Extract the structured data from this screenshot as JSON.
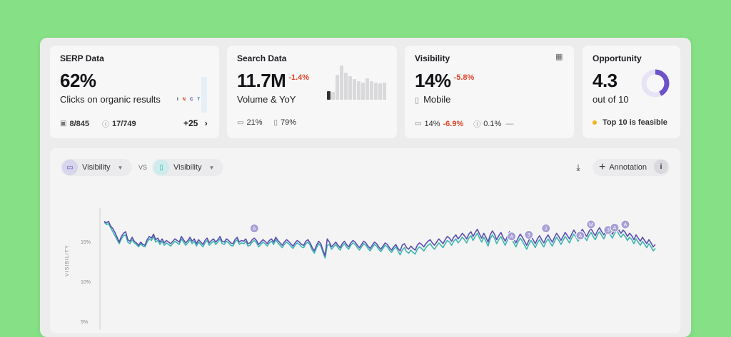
{
  "cards": {
    "serp": {
      "title": "SERP Data",
      "value": "62%",
      "subtitle": "Clicks on organic results",
      "features_label": "8/845",
      "unknown_label": "17/749",
      "more_label": "+25",
      "intent_tags": [
        "I",
        "N",
        "C",
        "T"
      ]
    },
    "search": {
      "title": "Search Data",
      "value": "11.7M",
      "delta": "-1.4%",
      "subtitle": "Volume & YoY",
      "desktop_share": "21%",
      "mobile_share": "79%",
      "trend_bars": [
        0.25,
        0.22,
        0.72,
        1.0,
        0.8,
        0.68,
        0.6,
        0.55,
        0.5,
        0.62,
        0.55,
        0.5,
        0.48,
        0.5
      ],
      "highlight_bar_index": 0
    },
    "visibility": {
      "title": "Visibility",
      "value": "14%",
      "delta": "-5.8%",
      "subtitle": "Mobile",
      "desktop_value": "14%",
      "desktop_delta": "-6.9%",
      "other_value": "0.1%",
      "other_delta": "—"
    },
    "opportunity": {
      "title": "Opportunity",
      "value": "4.3",
      "subtitle": "out of 10",
      "status": "Top 10 is feasible",
      "status_color": "#f1b51c",
      "score_fraction": 0.43,
      "ring_color": "#6e52c8"
    }
  },
  "chart_controls": {
    "left_series_label": "Visibility",
    "right_series_label": "Visibility",
    "vs_label": "VS",
    "annotation_label": "Annotation"
  },
  "chart_data": {
    "type": "line",
    "ylabel": "VISIBILITY",
    "yticks": [
      "15%",
      "10%",
      "5%"
    ],
    "ytick_values": [
      15,
      10,
      5
    ],
    "ylim": [
      2,
      20
    ],
    "x_count": 260,
    "grid": false,
    "series": [
      {
        "color": "#5a4fb0",
        "values": [
          17.8,
          17.6,
          17.8,
          17.2,
          16.9,
          16.4,
          15.8,
          15.2,
          15.9,
          16.3,
          16.5,
          15.5,
          15.3,
          15.8,
          15.3,
          15.1,
          14.8,
          15.2,
          14.9,
          14.8,
          15.5,
          15.9,
          15.7,
          16.2,
          15.5,
          15.7,
          15.2,
          15.6,
          15.1,
          15.4,
          15.2,
          15.0,
          15.3,
          15.6,
          15.4,
          15.2,
          15.9,
          15.5,
          15.1,
          15.4,
          15.8,
          15.3,
          15.6,
          15.0,
          15.5,
          15.2,
          14.9,
          15.4,
          15.7,
          15.1,
          15.4,
          15.6,
          15.2,
          15.5,
          15.9,
          15.3,
          15.2,
          15.6,
          15.4,
          15.1,
          15.0,
          15.5,
          15.8,
          15.2,
          15.4,
          15.3,
          15.6,
          15.0,
          15.1,
          15.5,
          15.7,
          15.4,
          14.9,
          15.2,
          15.5,
          15.3,
          15.0,
          15.4,
          15.6,
          15.2,
          15.8,
          15.4,
          15.1,
          14.8,
          15.2,
          15.5,
          15.3,
          15.0,
          14.7,
          15.1,
          15.4,
          15.2,
          14.9,
          14.8,
          15.3,
          15.5,
          15.1,
          14.5,
          14.1,
          14.8,
          15.3,
          15.0,
          14.2,
          13.5,
          15.6,
          15.2,
          14.6,
          14.9,
          15.2,
          14.8,
          14.5,
          15.0,
          15.3,
          14.9,
          14.6,
          15.1,
          15.4,
          15.2,
          14.8,
          14.5,
          14.9,
          15.3,
          15.1,
          14.7,
          14.4,
          14.8,
          15.2,
          15.0,
          14.6,
          14.3,
          14.7,
          15.1,
          14.9,
          14.5,
          14.2,
          14.6,
          14.9,
          14.4,
          14.1,
          14.8,
          15.0,
          14.5,
          14.3,
          14.7,
          14.4,
          14.2,
          14.8,
          15.1,
          14.9,
          14.6,
          15.0,
          15.3,
          15.5,
          15.1,
          14.8,
          15.2,
          15.6,
          15.3,
          15.0,
          15.5,
          15.9,
          15.7,
          15.3,
          15.8,
          16.1,
          15.6,
          15.9,
          16.3,
          16.0,
          15.6,
          16.2,
          16.5,
          15.9,
          16.4,
          16.8,
          16.2,
          15.7,
          16.3,
          15.8,
          15.2,
          16.1,
          16.6,
          16.2,
          15.5,
          16.0,
          16.4,
          15.8,
          15.3,
          15.9,
          16.5,
          16.1,
          15.6,
          15.1,
          15.7,
          16.2,
          15.8,
          15.3,
          14.8,
          15.4,
          15.9,
          15.5,
          15.0,
          15.6,
          16.0,
          15.5,
          15.1,
          15.7,
          16.1,
          15.6,
          15.2,
          15.8,
          16.3,
          15.9,
          15.4,
          15.9,
          16.4,
          16.0,
          15.6,
          16.2,
          16.7,
          16.3,
          15.8,
          16.4,
          16.8,
          16.3,
          15.9,
          16.5,
          16.9,
          16.4,
          16.0,
          16.6,
          17.0,
          16.5,
          16.1,
          16.7,
          17.1,
          16.6,
          16.2,
          16.8,
          17.2,
          16.7,
          16.3,
          16.7,
          16.4,
          15.9,
          16.3,
          16.0,
          15.5,
          16.1,
          15.7,
          15.3,
          15.8,
          15.4,
          15.0,
          15.5,
          15.1,
          14.6,
          14.9
        ]
      },
      {
        "color": "#3db5ae",
        "values": [
          17.7,
          17.4,
          17.5,
          17.0,
          16.5,
          16.0,
          15.5,
          15.0,
          15.6,
          16.0,
          16.1,
          15.2,
          15.0,
          15.5,
          15.1,
          14.9,
          14.6,
          15.0,
          14.7,
          14.6,
          15.2,
          15.6,
          15.4,
          15.9,
          15.2,
          15.4,
          14.9,
          15.3,
          14.8,
          15.1,
          14.9,
          14.7,
          15.0,
          15.3,
          15.1,
          14.9,
          15.6,
          15.2,
          14.8,
          15.1,
          15.5,
          15.0,
          15.3,
          14.7,
          15.2,
          14.9,
          14.6,
          15.1,
          15.4,
          14.8,
          15.1,
          15.3,
          14.9,
          15.2,
          15.6,
          15.0,
          14.9,
          15.3,
          15.1,
          14.8,
          14.7,
          15.2,
          15.5,
          14.9,
          15.1,
          15.0,
          15.3,
          14.7,
          14.8,
          15.2,
          15.4,
          15.1,
          14.6,
          14.9,
          15.2,
          15.0,
          14.7,
          15.1,
          15.3,
          14.9,
          15.5,
          15.1,
          14.8,
          14.5,
          14.9,
          15.2,
          15.0,
          14.7,
          14.4,
          14.8,
          15.1,
          14.9,
          14.6,
          14.5,
          15.0,
          15.2,
          14.8,
          14.2,
          13.8,
          14.5,
          15.0,
          14.7,
          13.9,
          13.2,
          14.8,
          14.9,
          14.3,
          14.6,
          14.9,
          14.5,
          14.2,
          14.7,
          15.0,
          14.6,
          14.3,
          14.8,
          15.1,
          14.9,
          14.5,
          14.2,
          14.6,
          15.0,
          14.8,
          14.4,
          14.1,
          14.5,
          14.9,
          14.7,
          14.3,
          14.0,
          14.4,
          14.8,
          14.6,
          14.2,
          13.9,
          14.3,
          14.6,
          14.1,
          13.6,
          14.2,
          14.5,
          14.0,
          13.8,
          14.2,
          13.9,
          13.7,
          14.3,
          14.6,
          14.4,
          14.1,
          14.5,
          14.8,
          15.0,
          14.6,
          14.3,
          14.7,
          15.1,
          14.8,
          14.5,
          15.0,
          15.4,
          15.2,
          14.8,
          15.3,
          15.6,
          15.1,
          15.4,
          15.8,
          15.5,
          15.1,
          15.7,
          16.0,
          15.4,
          15.9,
          16.3,
          15.7,
          15.2,
          15.8,
          15.3,
          14.7,
          15.6,
          16.1,
          15.7,
          15.0,
          15.5,
          15.9,
          15.3,
          14.8,
          15.4,
          16.0,
          15.6,
          15.1,
          14.6,
          15.2,
          15.7,
          15.3,
          14.8,
          14.3,
          14.9,
          15.4,
          15.0,
          14.5,
          15.1,
          15.5,
          15.0,
          14.6,
          15.2,
          15.6,
          15.1,
          14.7,
          15.3,
          15.8,
          15.4,
          14.9,
          15.4,
          15.9,
          15.5,
          15.1,
          15.7,
          16.2,
          15.8,
          15.3,
          15.9,
          16.3,
          15.8,
          15.4,
          16.0,
          16.4,
          15.9,
          15.5,
          16.1,
          16.5,
          16.0,
          15.6,
          16.2,
          16.6,
          16.1,
          15.7,
          16.3,
          16.7,
          16.2,
          15.8,
          16.2,
          15.9,
          15.4,
          15.8,
          15.5,
          15.0,
          15.6,
          15.2,
          14.8,
          15.3,
          14.9,
          14.5,
          15.0,
          14.6,
          14.1,
          14.4
        ]
      }
    ],
    "annotations": [
      {
        "label": "A",
        "x_index": 70,
        "value": 16.2
      },
      {
        "label": "A",
        "x_index": 190,
        "value": 15.2
      },
      {
        "label": "3",
        "x_index": 198,
        "value": 15.4
      },
      {
        "label": "2",
        "x_index": 206,
        "value": 16.2
      },
      {
        "label": "A",
        "x_index": 222,
        "value": 15.3
      },
      {
        "label": "M",
        "x_index": 227,
        "value": 16.7
      },
      {
        "label": "3",
        "x_index": 235,
        "value": 16.0
      },
      {
        "label": "A",
        "x_index": 238,
        "value": 16.3
      },
      {
        "label": "A",
        "x_index": 243,
        "value": 16.7
      }
    ]
  }
}
